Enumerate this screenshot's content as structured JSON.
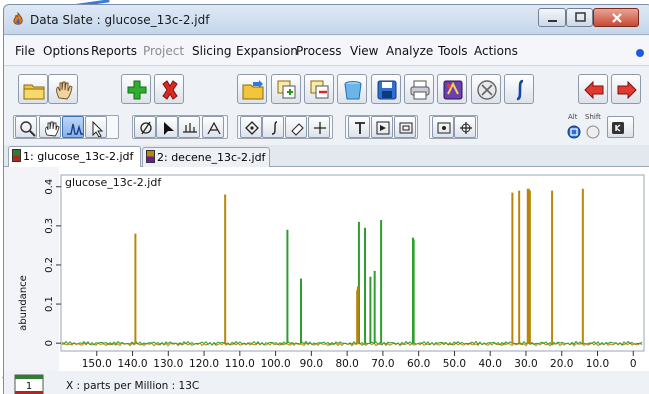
{
  "window": {
    "title": "Data Slate : glucose_13c-2.jdf",
    "accent": "#1e5adf"
  },
  "menus": [
    {
      "label": "File",
      "enabled": true
    },
    {
      "label": "Options",
      "enabled": true
    },
    {
      "label": "Reports",
      "enabled": true
    },
    {
      "label": "Project",
      "enabled": false
    },
    {
      "label": "Slicing",
      "enabled": true
    },
    {
      "label": "Expansion",
      "enabled": true
    },
    {
      "label": "Process",
      "enabled": true
    },
    {
      "label": "View",
      "enabled": true
    },
    {
      "label": "Analyze",
      "enabled": true
    },
    {
      "label": "Tools",
      "enabled": true
    },
    {
      "label": "Actions",
      "enabled": true
    }
  ],
  "toolbar": {
    "main_icons": [
      "open-folder-icon",
      "hand-tool-icon",
      "add-icon",
      "delete-icon",
      "open-project-icon",
      "layers-add-icon",
      "layers-remove-icon",
      "trash-can-icon",
      "save-icon",
      "print-icon",
      "scripts-icon",
      "stop-icon",
      "integral-icon",
      "previous-arrow-icon",
      "next-arrow-icon"
    ],
    "tool_icons": [
      "zoom-icon",
      "pan-icon",
      "peak-pick-icon",
      "select-arrow-icon",
      "phase-icon",
      "cursor-icon",
      "baseline-icon",
      "multiplet-icon",
      "peak-marker-icon",
      "integral-tool-icon",
      "eraser-icon",
      "crosshair-icon",
      "text-icon",
      "frame-icon",
      "box-icon",
      "measure-icon",
      "link-icon",
      "alt-modifier-icon",
      "shift-modifier-icon",
      "keyboard-icon"
    ],
    "alt_label": "Alt",
    "shift_label": "Shift"
  },
  "tabs": [
    {
      "label": "1: glucose_13c-2.jdf",
      "color": "#2e7d32",
      "color_bottom": "#b3261e",
      "active": true
    },
    {
      "label": "2: decene_13c-2.jdf",
      "color": "#b8860b",
      "color_bottom": "#6a1b9a",
      "active": false
    }
  ],
  "status": {
    "spectrum_index": "1",
    "x_caption": "X : parts per Million : 13C"
  },
  "chart_data": {
    "type": "line",
    "title": "glucose_13c-2.jdf",
    "xlabel": "X : parts per Million : 13C",
    "ylabel": "abundance",
    "x_reversed": true,
    "xlim": [
      160.0,
      -3.0
    ],
    "ylim": [
      -0.02,
      0.43
    ],
    "xticks": [
      150.0,
      140.0,
      130.0,
      120.0,
      110.0,
      100.0,
      90.0,
      80.0,
      70.0,
      60.0,
      50.0,
      40.0,
      30.0,
      20.0,
      10.0,
      0
    ],
    "xtick_labels": [
      "150.0",
      "140.0",
      "130.0",
      "120.0",
      "110.0",
      "100.0",
      "90.0",
      "80.0",
      "70.0",
      "60.0",
      "50.0",
      "40.0",
      "30.0",
      "20.0",
      "10.0",
      "0"
    ],
    "yticks": [
      0.0,
      0.1,
      0.2,
      0.3,
      0.4
    ],
    "ytick_labels": [
      "0",
      "0.1",
      "0.2",
      "0.3",
      "0.4"
    ],
    "grid": false,
    "series": [
      {
        "name": "glucose_13c-2.jdf",
        "color": "#2e9e2e",
        "peaks": [
          {
            "ppm": 96.7,
            "height": 0.29
          },
          {
            "ppm": 92.9,
            "height": 0.165
          },
          {
            "ppm": 76.7,
            "height": 0.31
          },
          {
            "ppm": 75.0,
            "height": 0.295
          },
          {
            "ppm": 73.5,
            "height": 0.17
          },
          {
            "ppm": 72.3,
            "height": 0.185
          },
          {
            "ppm": 70.5,
            "height": 0.315
          },
          {
            "ppm": 61.6,
            "height": 0.27
          },
          {
            "ppm": 61.4,
            "height": 0.265
          }
        ]
      },
      {
        "name": "decene_13c-2.jdf",
        "color": "#b8860b",
        "peaks": [
          {
            "ppm": 139.2,
            "height": 0.28
          },
          {
            "ppm": 114.1,
            "height": 0.38
          },
          {
            "ppm": 33.8,
            "height": 0.385
          },
          {
            "ppm": 31.9,
            "height": 0.39
          },
          {
            "ppm": 29.5,
            "height": 0.395
          },
          {
            "ppm": 29.2,
            "height": 0.395
          },
          {
            "ppm": 28.9,
            "height": 0.39
          },
          {
            "ppm": 22.7,
            "height": 0.39
          },
          {
            "ppm": 14.1,
            "height": 0.395
          },
          {
            "ppm": 77.2,
            "height": 0.135
          },
          {
            "ppm": 77.0,
            "height": 0.145
          }
        ]
      }
    ]
  }
}
